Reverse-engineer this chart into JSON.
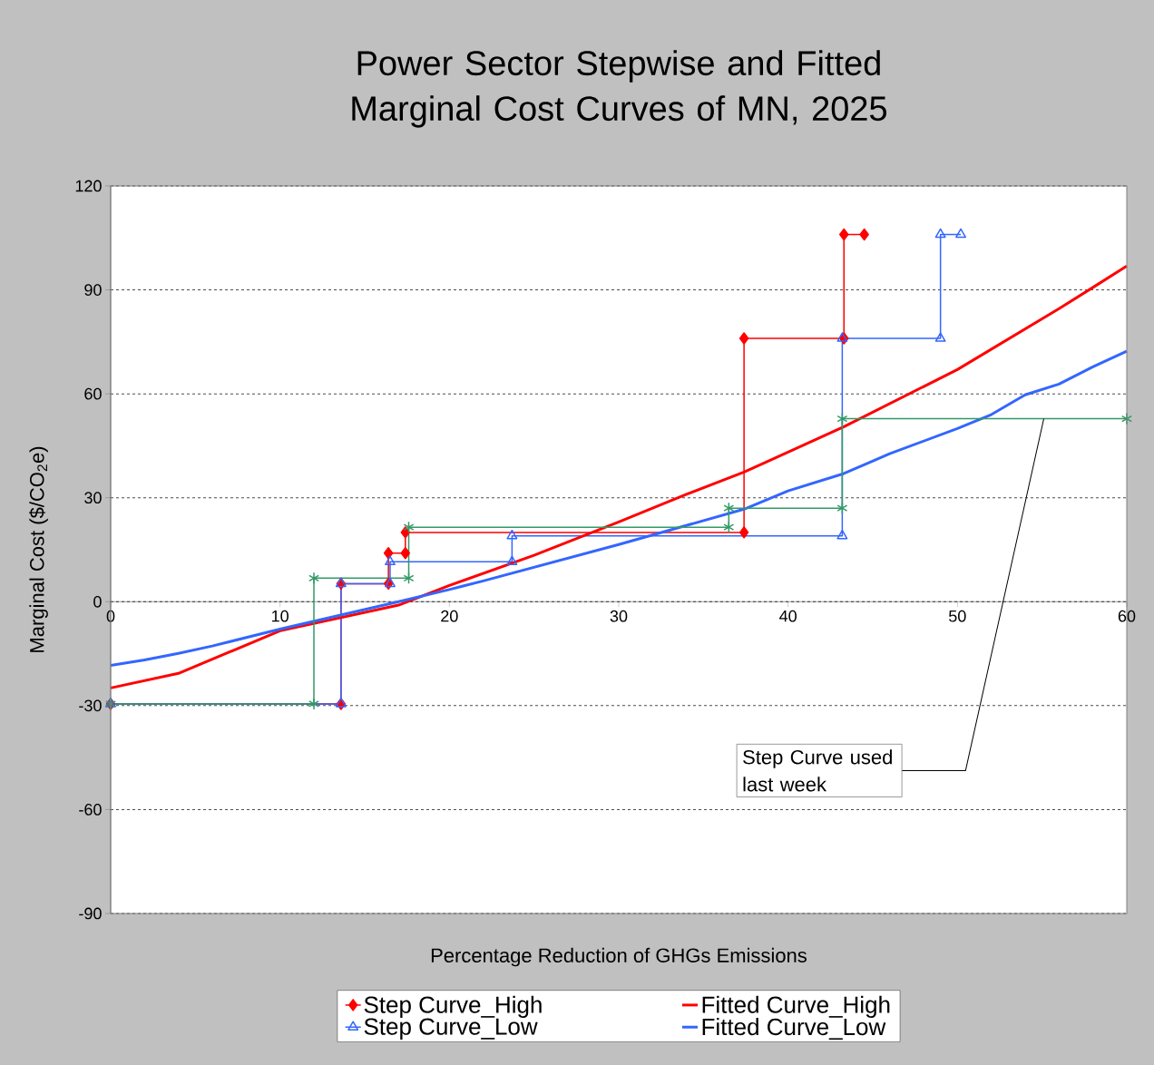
{
  "chart_data": {
    "type": "line",
    "title": "Power Sector Stepwise and Fitted Marginal Cost Curves of MN, 2025",
    "xlabel": "Percentage Reduction of GHGs Emissions",
    "ylabel": "Marginal Cost ($/CO$_{2}$e)",
    "xlim": [
      0,
      60
    ],
    "xticks": [
      0,
      10,
      20,
      30,
      40,
      50,
      60
    ],
    "ylim": [
      -90,
      120
    ],
    "yticks": [
      -90,
      -60,
      -30,
      0,
      30,
      60,
      90,
      120
    ],
    "grid": "y",
    "legend": "bottom",
    "series": [
      {
        "name": "Step Curve_High",
        "color": "#ff0000",
        "marker": "diamond",
        "x": [
          0,
          13.6,
          13.6,
          16.4,
          16.4,
          17.4,
          17.4,
          37.4,
          37.4,
          43.3,
          43.3,
          44.5
        ],
        "values": [
          -29.5,
          -29.5,
          5.2,
          5.2,
          14,
          14,
          20,
          20,
          76,
          76,
          106,
          106
        ]
      },
      {
        "name": "Step Curve_Low",
        "color": "#3366ff",
        "marker": "triangle",
        "x": [
          0,
          13.6,
          13.6,
          16.5,
          16.5,
          23.7,
          23.7,
          43.2,
          43.2,
          49.0,
          49.0,
          50.2
        ],
        "values": [
          -29.5,
          -29.5,
          5.2,
          5.2,
          11.5,
          11.5,
          19,
          19,
          76,
          76,
          106,
          106
        ]
      },
      {
        "name": "Fitted Curve_High",
        "color": "#ff0000",
        "marker": "none",
        "x": [
          0,
          4,
          10,
          17,
          20,
          25,
          30,
          34,
          37.4,
          43.3,
          50,
          56,
          58,
          60
        ],
        "values": [
          -24.9,
          -20.7,
          -8.4,
          -1,
          4.7,
          13.4,
          23,
          31,
          37.4,
          50.5,
          67,
          84.6,
          90.7,
          96.9
        ]
      },
      {
        "name": "Fitted Curve_Low",
        "color": "#3366ff",
        "marker": "none",
        "x": [
          0,
          2,
          4,
          6,
          10,
          17,
          20,
          22,
          30,
          37.4,
          40,
          43.3,
          46,
          50,
          52,
          54,
          56,
          58,
          60
        ],
        "values": [
          -18.4,
          -16.8,
          -14.9,
          -12.8,
          -7.9,
          0,
          3.5,
          6,
          16.5,
          26.7,
          32,
          37,
          42.7,
          50,
          54,
          59.7,
          62.8,
          67.8,
          72.3
        ]
      },
      {
        "color": "#339966",
        "marker": "cross",
        "x": [
          0,
          12.0,
          12.0,
          17.6,
          17.6,
          36.5,
          36.5,
          43.2,
          43.2,
          60
        ],
        "values": [
          -29.5,
          -29.5,
          6.8,
          6.8,
          21.5,
          21.5,
          27,
          27,
          52.8,
          52.8
        ]
      }
    ],
    "annotations": [
      {
        "text": "Step Curve used last week",
        "x": 55.1,
        "y": 52.8
      }
    ]
  }
}
